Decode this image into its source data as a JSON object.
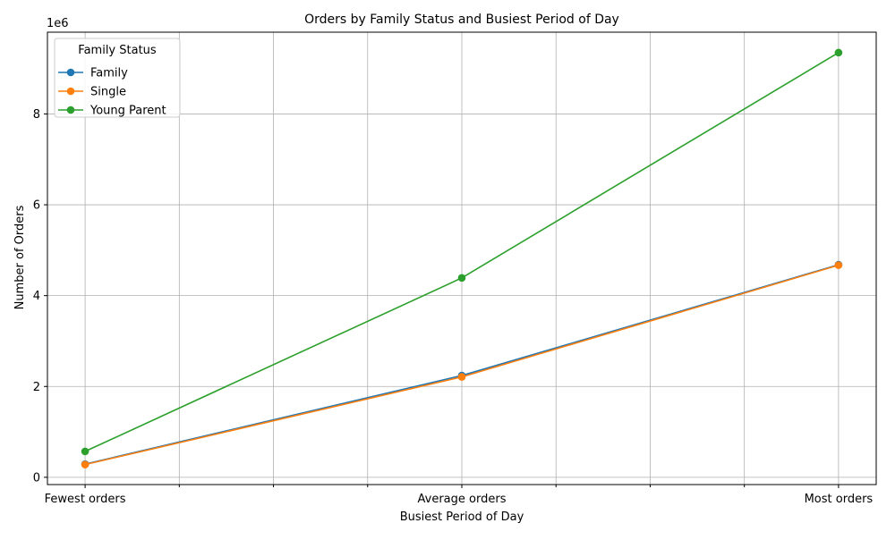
{
  "chart_data": {
    "type": "line",
    "title": "Orders by Family Status and Busiest Period of Day",
    "xlabel": "Busiest Period of Day",
    "ylabel": "Number of Orders",
    "y_offset_text": "1e6",
    "categories": [
      "Fewest orders",
      "Average orders",
      "Most orders"
    ],
    "ylim": [
      -0.16,
      9.8
    ],
    "y_scale_factor": 1000000,
    "yticks": [
      0,
      2,
      4,
      6,
      8
    ],
    "ytick_labels": [
      "0",
      "2",
      "4",
      "6",
      "8"
    ],
    "grid": true,
    "legend": {
      "title": "Family Status",
      "placement": "top-left"
    },
    "series": [
      {
        "name": "Family",
        "color": "#1f77b4",
        "values": [
          0.29,
          2.24,
          4.68
        ]
      },
      {
        "name": "Single",
        "color": "#ff7f0e",
        "values": [
          0.28,
          2.21,
          4.67
        ]
      },
      {
        "name": "Young Parent",
        "color": "#2ca02c",
        "values": [
          0.57,
          4.39,
          9.35
        ]
      }
    ]
  }
}
